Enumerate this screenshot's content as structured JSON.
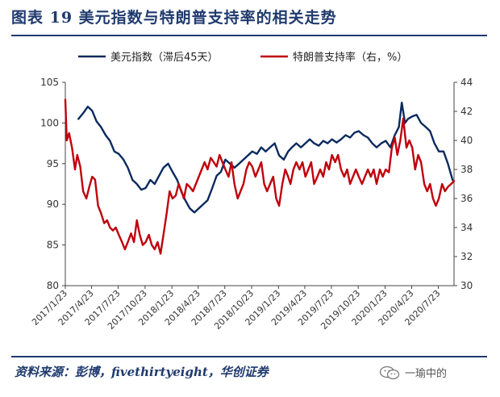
{
  "title": "图表  19    美元指数与特朗普支持率的相关走势",
  "source": "资料来源：彭博，fivethirtyeight，华创证券",
  "watermark": "一瑜中的",
  "colors": {
    "navy": "#1f3a6d",
    "dollar": "#0b2a5e",
    "approval": "#c0000b",
    "axis": "#444444"
  },
  "chart_data": {
    "type": "line",
    "title": "美元指数与特朗普支持率的相关走势",
    "xlabel": "",
    "ylabel_left": "",
    "ylabel_right": "",
    "ylim_left": [
      80,
      105
    ],
    "yticks_left": [
      80,
      85,
      90,
      95,
      100,
      105
    ],
    "ylim_right": [
      30,
      44
    ],
    "yticks_right": [
      30,
      32,
      34,
      36,
      38,
      40,
      42,
      44
    ],
    "xlim": [
      "2017/1/23",
      "2020/9/15"
    ],
    "xticks": [
      "2017/1/23",
      "2017/4/23",
      "2017/7/23",
      "2017/10/23",
      "2018/1/23",
      "2018/4/23",
      "2018/7/23",
      "2018/10/23",
      "2019/1/23",
      "2019/4/23",
      "2019/7/23",
      "2019/10/23",
      "2020/1/23",
      "2020/4/23",
      "2020/7/23"
    ],
    "legend": [
      "美元指数（滞后45天）",
      "特朗普支持率（右，%）"
    ],
    "legend_position": "top-center",
    "grid": false,
    "series": [
      {
        "name": "美元指数（滞后45天）",
        "axis": "left",
        "color": "#0b2a5e",
        "dates": [
          "2017-03-09",
          "2017-03-25",
          "2017-04-10",
          "2017-04-25",
          "2017-05-10",
          "2017-05-25",
          "2017-06-10",
          "2017-06-25",
          "2017-07-10",
          "2017-07-25",
          "2017-08-10",
          "2017-08-25",
          "2017-09-10",
          "2017-09-25",
          "2017-10-10",
          "2017-10-25",
          "2017-11-10",
          "2017-11-25",
          "2017-12-10",
          "2017-12-25",
          "2018-01-10",
          "2018-01-25",
          "2018-02-10",
          "2018-02-25",
          "2018-03-10",
          "2018-03-25",
          "2018-04-10",
          "2018-04-25",
          "2018-05-10",
          "2018-05-25",
          "2018-06-10",
          "2018-06-25",
          "2018-07-10",
          "2018-07-25",
          "2018-08-10",
          "2018-08-25",
          "2018-09-10",
          "2018-09-25",
          "2018-10-10",
          "2018-10-25",
          "2018-11-10",
          "2018-11-25",
          "2018-12-10",
          "2018-12-25",
          "2019-01-10",
          "2019-01-25",
          "2019-02-10",
          "2019-02-25",
          "2019-03-10",
          "2019-03-25",
          "2019-04-10",
          "2019-04-25",
          "2019-05-10",
          "2019-05-25",
          "2019-06-10",
          "2019-06-25",
          "2019-07-10",
          "2019-07-25",
          "2019-08-10",
          "2019-08-25",
          "2019-09-10",
          "2019-09-25",
          "2019-10-10",
          "2019-10-25",
          "2019-11-10",
          "2019-11-25",
          "2019-12-10",
          "2019-12-25",
          "2020-01-10",
          "2020-01-25",
          "2020-02-10",
          "2020-02-25",
          "2020-03-10",
          "2020-03-20",
          "2020-03-31",
          "2020-04-10",
          "2020-04-25",
          "2020-05-10",
          "2020-05-25",
          "2020-06-10",
          "2020-06-25",
          "2020-07-10",
          "2020-07-25",
          "2020-08-10",
          "2020-08-25",
          "2020-09-10"
        ],
        "values": [
          100.5,
          101.2,
          102.0,
          101.5,
          100.2,
          99.5,
          98.5,
          97.8,
          96.5,
          96.2,
          95.5,
          94.5,
          93.0,
          92.5,
          91.8,
          92.0,
          93.0,
          92.5,
          93.5,
          94.5,
          95.0,
          94.0,
          93.0,
          91.5,
          90.5,
          89.5,
          89.0,
          89.5,
          90.0,
          90.5,
          92.0,
          93.5,
          94.0,
          95.5,
          95.0,
          94.5,
          95.0,
          95.5,
          96.0,
          96.5,
          96.2,
          97.0,
          96.5,
          97.0,
          97.5,
          96.0,
          95.5,
          96.5,
          97.0,
          97.5,
          97.0,
          97.5,
          98.0,
          97.5,
          97.2,
          97.8,
          97.5,
          98.0,
          97.6,
          98.0,
          98.5,
          98.2,
          98.8,
          99.0,
          98.5,
          98.2,
          97.5,
          97.0,
          97.5,
          97.8,
          97.0,
          98.5,
          99.5,
          102.5,
          100.0,
          100.5,
          100.8,
          101.0,
          100.0,
          99.5,
          99.0,
          97.5,
          96.5,
          96.5,
          95.0,
          93.0
        ]
      },
      {
        "name": "特朗普支持率（右，%）",
        "axis": "right",
        "color": "#c0000b",
        "dates": [
          "2017-01-23",
          "2017-01-28",
          "2017-02-05",
          "2017-02-15",
          "2017-02-25",
          "2017-03-05",
          "2017-03-15",
          "2017-03-25",
          "2017-04-05",
          "2017-04-15",
          "2017-04-25",
          "2017-05-05",
          "2017-05-15",
          "2017-05-25",
          "2017-06-05",
          "2017-06-15",
          "2017-06-25",
          "2017-07-05",
          "2017-07-15",
          "2017-07-25",
          "2017-08-05",
          "2017-08-15",
          "2017-08-25",
          "2017-09-05",
          "2017-09-15",
          "2017-09-25",
          "2017-10-05",
          "2017-10-15",
          "2017-10-25",
          "2017-11-05",
          "2017-11-15",
          "2017-11-25",
          "2017-12-05",
          "2017-12-15",
          "2017-12-25",
          "2018-01-05",
          "2018-01-15",
          "2018-01-25",
          "2018-02-05",
          "2018-02-15",
          "2018-02-25",
          "2018-03-05",
          "2018-03-15",
          "2018-03-25",
          "2018-04-05",
          "2018-04-15",
          "2018-04-25",
          "2018-05-05",
          "2018-05-15",
          "2018-05-25",
          "2018-06-05",
          "2018-06-15",
          "2018-06-25",
          "2018-07-05",
          "2018-07-15",
          "2018-07-25",
          "2018-08-05",
          "2018-08-15",
          "2018-08-25",
          "2018-09-05",
          "2018-09-15",
          "2018-09-25",
          "2018-10-05",
          "2018-10-15",
          "2018-10-25",
          "2018-11-05",
          "2018-11-15",
          "2018-11-25",
          "2018-12-05",
          "2018-12-15",
          "2018-12-25",
          "2019-01-05",
          "2019-01-15",
          "2019-01-25",
          "2019-02-05",
          "2019-02-15",
          "2019-02-25",
          "2019-03-05",
          "2019-03-15",
          "2019-03-25",
          "2019-04-05",
          "2019-04-15",
          "2019-04-25",
          "2019-05-05",
          "2019-05-15",
          "2019-05-25",
          "2019-06-05",
          "2019-06-15",
          "2019-06-25",
          "2019-07-05",
          "2019-07-15",
          "2019-07-25",
          "2019-08-05",
          "2019-08-15",
          "2019-08-25",
          "2019-09-05",
          "2019-09-15",
          "2019-09-25",
          "2019-10-05",
          "2019-10-15",
          "2019-10-25",
          "2019-11-05",
          "2019-11-15",
          "2019-11-25",
          "2019-12-05",
          "2019-12-15",
          "2019-12-25",
          "2020-01-05",
          "2020-01-15",
          "2020-01-25",
          "2020-02-05",
          "2020-02-15",
          "2020-02-25",
          "2020-03-05",
          "2020-03-15",
          "2020-03-25",
          "2020-04-05",
          "2020-04-15",
          "2020-04-25",
          "2020-05-05",
          "2020-05-15",
          "2020-05-25",
          "2020-06-05",
          "2020-06-15",
          "2020-06-25",
          "2020-07-05",
          "2020-07-15",
          "2020-07-25",
          "2020-08-05",
          "2020-08-15",
          "2020-08-25",
          "2020-09-05",
          "2020-09-15"
        ],
        "values": [
          42.8,
          40.0,
          40.5,
          39.5,
          38.0,
          39.0,
          38.2,
          36.5,
          36.0,
          36.8,
          37.5,
          37.3,
          35.5,
          35.0,
          34.3,
          34.5,
          34.0,
          33.8,
          34.0,
          33.5,
          33.0,
          32.5,
          33.0,
          33.6,
          33.0,
          34.5,
          33.5,
          32.8,
          33.0,
          33.5,
          32.8,
          32.5,
          33.0,
          32.2,
          33.5,
          35.0,
          36.5,
          36.0,
          36.2,
          37.0,
          36.5,
          36.0,
          37.0,
          36.8,
          36.5,
          37.0,
          37.5,
          38.0,
          38.5,
          38.0,
          38.8,
          38.5,
          38.2,
          39.0,
          38.5,
          38.0,
          37.5,
          38.5,
          37.0,
          36.0,
          36.5,
          37.0,
          38.0,
          38.5,
          38.2,
          37.5,
          38.0,
          38.5,
          37.0,
          36.5,
          37.0,
          37.5,
          36.0,
          35.5,
          37.0,
          38.0,
          37.5,
          37.0,
          38.0,
          38.5,
          38.0,
          38.5,
          37.5,
          38.0,
          38.5,
          37.0,
          37.5,
          38.0,
          37.5,
          38.5,
          38.0,
          39.0,
          38.5,
          39.0,
          38.0,
          37.5,
          38.0,
          37.0,
          37.5,
          38.0,
          37.5,
          37.0,
          37.5,
          38.0,
          37.5,
          38.0,
          37.0,
          38.0,
          37.5,
          38.0,
          37.8,
          39.5,
          40.2,
          39.0,
          40.0,
          41.5,
          39.5,
          40.0,
          39.5,
          38.0,
          39.0,
          38.5,
          37.0,
          36.5,
          37.0,
          36.0,
          35.5,
          36.0,
          37.0,
          36.5,
          36.8,
          37.0,
          37.2
        ]
      }
    ]
  }
}
